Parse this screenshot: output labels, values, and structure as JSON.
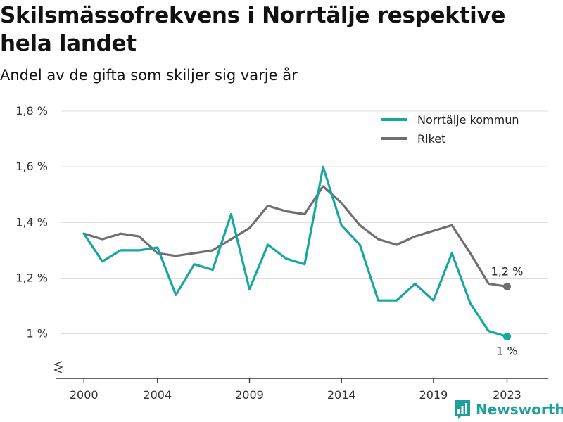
{
  "title": "Skilsmässofrekvens i Norrtälje respektive hela landet",
  "subtitle": "Andel av de gifta som skiljer sig varje år",
  "brand": "Newsworthy",
  "colors": {
    "norrtalje": "#16a79e",
    "riket": "#6e6e73",
    "grid": "#dddddd",
    "axis": "#333333",
    "brand": "#1e9f9a"
  },
  "chart_data": {
    "type": "line",
    "title": "Skilsmässofrekvens i Norrtälje respektive hela landet",
    "subtitle": "Andel av de gifta som skiljer sig varje år",
    "xlabel": "",
    "ylabel": "",
    "x": [
      2000,
      2001,
      2002,
      2003,
      2004,
      2005,
      2006,
      2007,
      2008,
      2009,
      2010,
      2011,
      2012,
      2013,
      2014,
      2015,
      2016,
      2017,
      2018,
      2019,
      2020,
      2021,
      2022,
      2023
    ],
    "x_ticks": [
      2000,
      2004,
      2009,
      2014,
      2019,
      2023
    ],
    "x_tick_labels": [
      "2000",
      "2004",
      "2009",
      "2014",
      "2019",
      "2023"
    ],
    "xlim": [
      1998.5,
      2025.2
    ],
    "ylim": [
      0.84,
      1.8
    ],
    "y_ticks": [
      1.0,
      1.2,
      1.4,
      1.6,
      1.8
    ],
    "y_tick_labels": [
      "1 %",
      "1,2 %",
      "1,4 %",
      "1,6 %",
      "1,8 %"
    ],
    "grid": true,
    "axis_break": true,
    "legend_position": "top-right",
    "series": [
      {
        "name": "Norrtälje kommun",
        "color": "#16a79e",
        "end_label": "1 %",
        "values": [
          1.36,
          1.26,
          1.3,
          1.3,
          1.31,
          1.14,
          1.25,
          1.23,
          1.43,
          1.16,
          1.32,
          1.27,
          1.25,
          1.6,
          1.39,
          1.32,
          1.12,
          1.12,
          1.18,
          1.12,
          1.29,
          1.11,
          1.01,
          0.99
        ]
      },
      {
        "name": "Riket",
        "color": "#6e6e73",
        "end_label": "1,2 %",
        "values": [
          1.36,
          1.34,
          1.36,
          1.35,
          1.29,
          1.28,
          1.29,
          1.3,
          1.34,
          1.38,
          1.46,
          1.44,
          1.43,
          1.53,
          1.47,
          1.39,
          1.34,
          1.32,
          1.35,
          1.37,
          1.39,
          1.29,
          1.18,
          1.17
        ]
      }
    ]
  }
}
